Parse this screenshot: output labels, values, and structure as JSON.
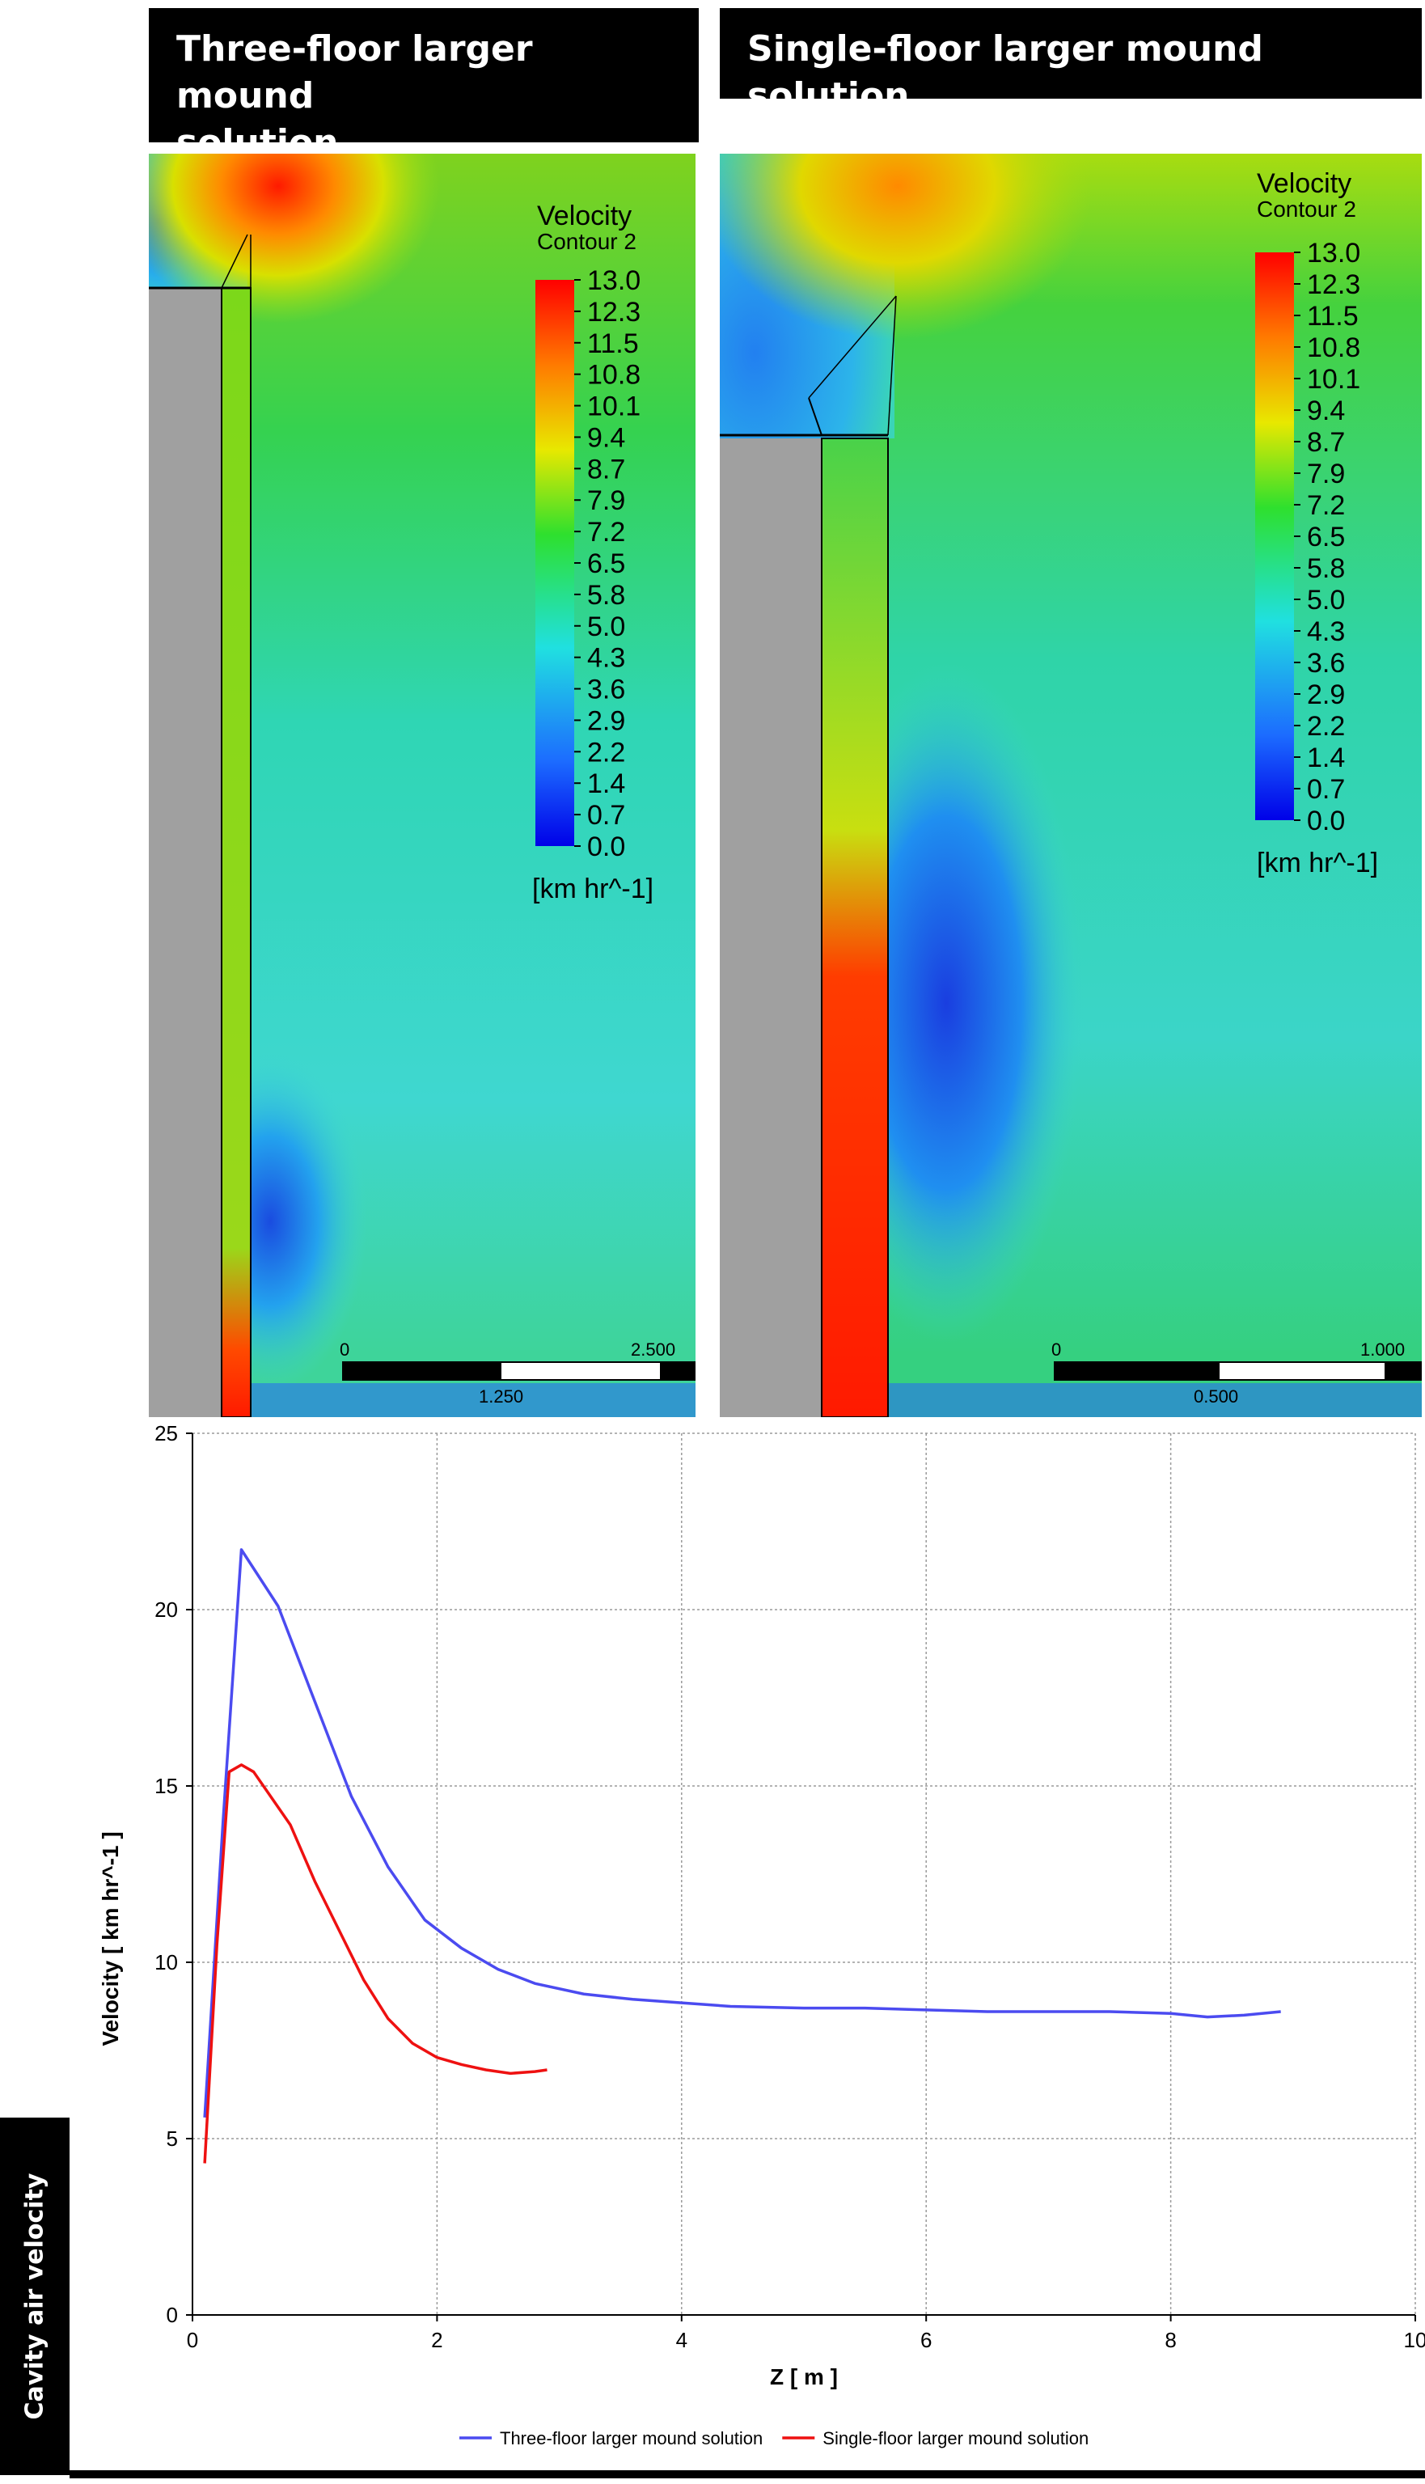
{
  "panels": [
    {
      "title_line1": "Three-floor larger mound",
      "title_line2": "solution",
      "legend_title": "Velocity",
      "legend_subtitle": "Contour 2",
      "legend_unit": "[km hr^-1]",
      "scale_labels": [
        "0",
        "2.500",
        "1.250"
      ]
    },
    {
      "title_line1": "Single-floor larger mound solution",
      "legend_title": "Velocity",
      "legend_subtitle": "Contour 2",
      "legend_unit": "[km hr^-1]",
      "scale_labels": [
        "0",
        "1.000",
        "0.500"
      ]
    }
  ],
  "legend_ticks": [
    "13.0",
    "12.3",
    "11.5",
    "10.8",
    "10.1",
    "9.4",
    "8.7",
    "7.9",
    "7.2",
    "6.5",
    "5.8",
    "5.0",
    "4.3",
    "3.6",
    "2.9",
    "2.2",
    "1.4",
    "0.7",
    "0.0"
  ],
  "side_label": "Cavity air velocity",
  "colors": {
    "series1": "#4b4bf0",
    "series2": "#ee1111"
  },
  "chart_data": {
    "type": "line",
    "xlabel": "Z [ m ]",
    "ylabel": "Velocity [ km hr^-1 ]",
    "xlim": [
      0,
      10
    ],
    "ylim": [
      0,
      25
    ],
    "xticks": [
      "0",
      "2",
      "4",
      "6",
      "8",
      "10"
    ],
    "yticks": [
      "0",
      "5",
      "10",
      "15",
      "20",
      "25"
    ],
    "grid": true,
    "legend_position": "bottom",
    "series": [
      {
        "name": "Three-floor larger mound solution",
        "color": "#4b4bf0",
        "x": [
          0.1,
          0.25,
          0.4,
          0.7,
          1.0,
          1.3,
          1.6,
          1.9,
          2.2,
          2.5,
          2.8,
          3.2,
          3.6,
          4.0,
          4.4,
          5.0,
          5.5,
          6.0,
          6.5,
          7.0,
          7.5,
          8.0,
          8.3,
          8.6,
          8.9
        ],
        "y": [
          5.6,
          14.0,
          21.7,
          20.1,
          17.4,
          14.7,
          12.7,
          11.2,
          10.4,
          9.8,
          9.4,
          9.1,
          8.95,
          8.85,
          8.75,
          8.7,
          8.7,
          8.65,
          8.6,
          8.6,
          8.6,
          8.55,
          8.45,
          8.5,
          8.6
        ]
      },
      {
        "name": "Single-floor larger mound solution",
        "color": "#ee1111",
        "x": [
          0.1,
          0.2,
          0.3,
          0.4,
          0.5,
          0.6,
          0.8,
          1.0,
          1.2,
          1.4,
          1.6,
          1.8,
          2.0,
          2.2,
          2.4,
          2.6,
          2.8,
          2.9
        ],
        "y": [
          4.3,
          10.5,
          15.4,
          15.6,
          15.4,
          14.9,
          13.9,
          12.3,
          10.9,
          9.5,
          8.4,
          7.7,
          7.3,
          7.1,
          6.95,
          6.85,
          6.9,
          6.95
        ]
      }
    ]
  }
}
